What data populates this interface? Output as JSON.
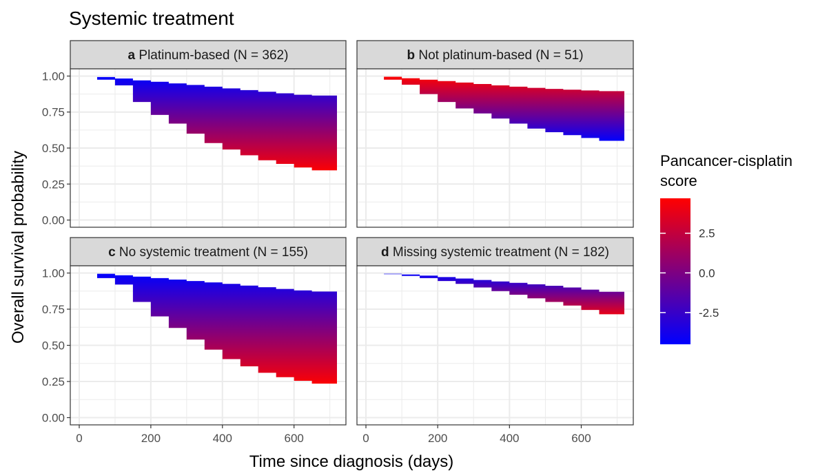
{
  "chart_data": {
    "type": "area",
    "title": "Systemic treatment",
    "xlabel": "Time since diagnosis (days)",
    "ylabel": "Overall survival probability",
    "xlim": [
      -25,
      745
    ],
    "ylim": [
      -0.05,
      1.05
    ],
    "x_ticks": [
      0,
      200,
      400,
      600
    ],
    "y_ticks": [
      0.0,
      0.25,
      0.5,
      0.75,
      1.0
    ],
    "y_tick_labels": [
      "0.00",
      "0.25",
      "0.50",
      "0.75",
      "1.00"
    ],
    "grid": true,
    "legend": {
      "title_lines": [
        "Pancancer-cisplatin",
        "score"
      ],
      "position": "right",
      "type": "colorbar",
      "range": [
        -4.5,
        4.7
      ],
      "ticks": [
        2.5,
        0.0,
        -2.5
      ],
      "tick_labels": [
        "2.5",
        "0.0",
        "-2.5"
      ],
      "low_color": "#0000ff",
      "high_color": "#ff0000"
    },
    "colors": {
      "strip_fill": "#d9d9d9",
      "grid": "#ebebeb",
      "panel_border": "#333333"
    },
    "panels": [
      {
        "letter": "a",
        "label": "Platinum-based (N = 362)",
        "time": [
          0,
          50,
          100,
          150,
          200,
          250,
          300,
          350,
          400,
          450,
          500,
          550,
          600,
          650,
          720
        ],
        "curve_score_low": [
          1.0,
          0.993,
          0.983,
          0.97,
          0.96,
          0.949,
          0.938,
          0.926,
          0.914,
          0.902,
          0.891,
          0.88,
          0.87,
          0.865,
          0.86
        ],
        "curve_score_high": [
          1.0,
          0.975,
          0.935,
          0.82,
          0.73,
          0.67,
          0.6,
          0.535,
          0.49,
          0.45,
          0.415,
          0.39,
          0.365,
          0.345,
          0.335
        ]
      },
      {
        "letter": "b",
        "label": "Not platinum-based (N = 51)",
        "time": [
          0,
          50,
          100,
          150,
          200,
          250,
          300,
          350,
          400,
          450,
          500,
          550,
          600,
          650,
          720
        ],
        "curve_score_low": [
          1.0,
          0.975,
          0.94,
          0.875,
          0.82,
          0.775,
          0.74,
          0.705,
          0.67,
          0.635,
          0.61,
          0.59,
          0.57,
          0.55,
          0.545
        ],
        "curve_score_high": [
          1.0,
          0.995,
          0.985,
          0.975,
          0.965,
          0.955,
          0.945,
          0.935,
          0.926,
          0.918,
          0.911,
          0.905,
          0.9,
          0.895,
          0.89
        ]
      },
      {
        "letter": "c",
        "label": "No systemic treatment (N = 155)",
        "time": [
          0,
          50,
          100,
          150,
          200,
          250,
          300,
          350,
          400,
          450,
          500,
          550,
          600,
          650,
          720
        ],
        "curve_score_low": [
          1.0,
          0.995,
          0.985,
          0.975,
          0.965,
          0.955,
          0.945,
          0.935,
          0.925,
          0.913,
          0.902,
          0.89,
          0.88,
          0.872,
          0.865
        ],
        "curve_score_high": [
          1.0,
          0.965,
          0.92,
          0.8,
          0.7,
          0.62,
          0.54,
          0.47,
          0.405,
          0.355,
          0.31,
          0.28,
          0.255,
          0.235,
          0.225
        ]
      },
      {
        "letter": "d",
        "label": "Missing systemic treatment (N = 182)",
        "time": [
          0,
          50,
          100,
          150,
          200,
          250,
          300,
          350,
          400,
          450,
          500,
          550,
          600,
          650,
          720
        ],
        "curve_score_low": [
          1.0,
          0.995,
          0.99,
          0.982,
          0.972,
          0.962,
          0.952,
          0.942,
          0.932,
          0.922,
          0.912,
          0.9,
          0.885,
          0.87,
          0.86
        ],
        "curve_score_high": [
          1.0,
          0.992,
          0.98,
          0.965,
          0.945,
          0.925,
          0.9,
          0.875,
          0.85,
          0.825,
          0.8,
          0.775,
          0.745,
          0.715,
          0.685
        ]
      }
    ]
  }
}
